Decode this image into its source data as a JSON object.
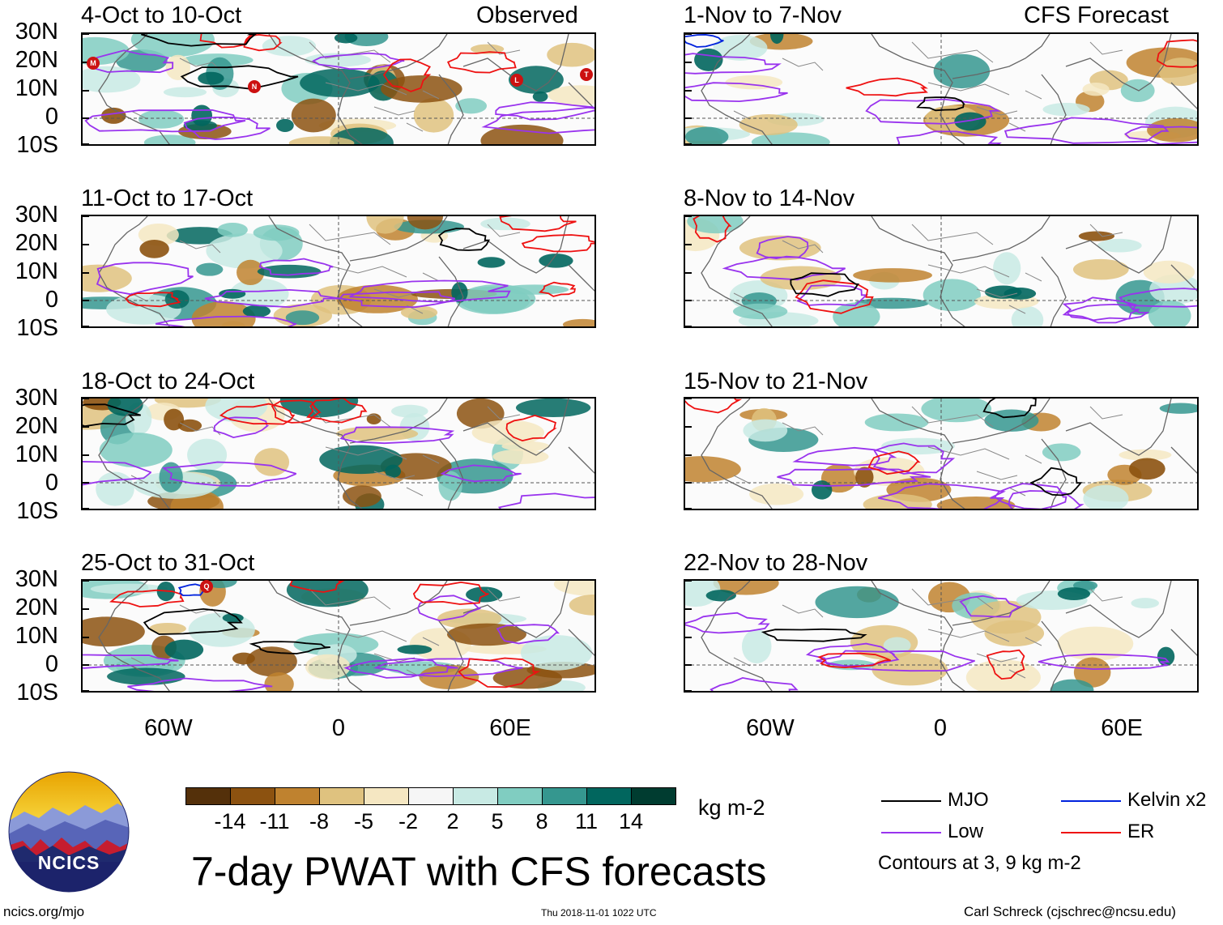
{
  "observed_label": "Observed",
  "forecast_label": "CFS Forecast",
  "panels_left": [
    {
      "title": "4-Oct to 10-Oct"
    },
    {
      "title": "11-Oct to 17-Oct"
    },
    {
      "title": "18-Oct to 24-Oct"
    },
    {
      "title": "25-Oct to 31-Oct"
    }
  ],
  "panels_right": [
    {
      "title": "1-Nov to 7-Nov"
    },
    {
      "title": "8-Nov to 14-Nov"
    },
    {
      "title": "15-Nov to 21-Nov"
    },
    {
      "title": "22-Nov to 28-Nov"
    }
  ],
  "lat_labels": [
    "30N",
    "20N",
    "10N",
    "0",
    "10S"
  ],
  "lon_labels": [
    "60W",
    "0",
    "60E"
  ],
  "storm_labels": [
    "M",
    "N",
    "L",
    "T",
    "Q"
  ],
  "colorbar": {
    "unit": "kg m-2",
    "labels": [
      "-14",
      "-11",
      "-8",
      "-5",
      "-2",
      "2",
      "5",
      "8",
      "11",
      "14"
    ],
    "colors": [
      "#54300a",
      "#8c5210",
      "#bf822f",
      "#dfc27f",
      "#f5e7c2",
      "#f6f6f6",
      "#c8eae4",
      "#80cdc1",
      "#35978f",
      "#01665e",
      "#003c30"
    ]
  },
  "legend": {
    "items": [
      {
        "name": "MJO",
        "color": "#000000"
      },
      {
        "name": "Low",
        "color": "#9933ee"
      },
      {
        "name": "Kelvin x2",
        "color": "#0022dd"
      },
      {
        "name": "ER",
        "color": "#ee1111"
      }
    ],
    "contours_note": "Contours at 3, 9 kg m-2"
  },
  "logo_text": "NCICS",
  "main_title": "7-day PWAT with CFS forecasts",
  "footer_left": "ncics.org/mjo",
  "footer_center": "Thu 2018-11-01 1022 UTC",
  "footer_right": "Carl Schreck (cjschrec@ncsu.edu)"
}
